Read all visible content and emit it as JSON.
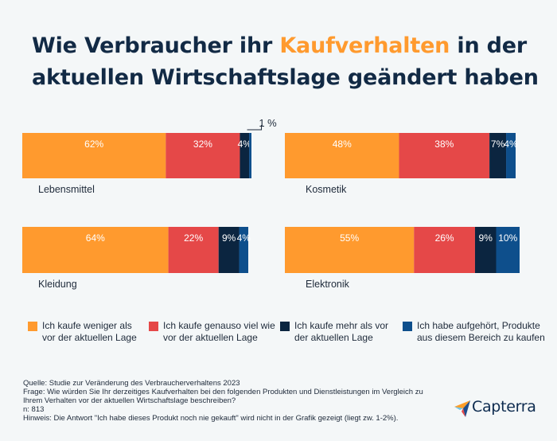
{
  "title": {
    "before": "Wie Verbraucher ihr ",
    "highlight": "Kaufverhalten",
    "after": " in der aktuellen Wirtschaftslage geändert haben"
  },
  "colors": {
    "highlight": "#ff9a2e",
    "series": [
      "#ff9a2e",
      "#e54848",
      "#0b2540",
      "#0e4f8c"
    ]
  },
  "chart_data": {
    "type": "bar",
    "orientation": "horizontal",
    "stacked": true,
    "series": [
      {
        "name": "Ich kaufe weniger als vor der aktuellen Lage",
        "color": "#ff9a2e"
      },
      {
        "name": "Ich kaufe genauso viel wie vor der aktuellen Lage",
        "color": "#e54848"
      },
      {
        "name": "Ich kaufe mehr als vor der aktuellen Lage",
        "color": "#0b2540"
      },
      {
        "name": "Ich habe aufgehört, Produkte aus diesem Bereich zu kaufen",
        "color": "#0e4f8c"
      }
    ],
    "panels": [
      {
        "category": "Lebensmittel",
        "values": [
          62,
          32,
          4,
          1
        ],
        "labels": [
          "62%",
          "32%",
          "4%",
          "1%"
        ],
        "callout": "1 %"
      },
      {
        "category": "Kosmetik",
        "values": [
          48,
          38,
          7,
          4
        ],
        "labels": [
          "48%",
          "38%",
          "7%",
          "4%"
        ]
      },
      {
        "category": "Kleidung",
        "values": [
          64,
          22,
          9,
          4
        ],
        "labels": [
          "64%",
          "22%",
          "9%",
          "4%"
        ]
      },
      {
        "category": "Elektronik",
        "values": [
          55,
          26,
          9,
          10
        ],
        "labels": [
          "55%",
          "26%",
          "9%",
          "10%"
        ]
      }
    ],
    "legend_position": "bottom"
  },
  "legend": [
    {
      "line1": "Ich kaufe weniger als",
      "line2": "vor der aktuellen Lage"
    },
    {
      "line1": "Ich kaufe genauso viel wie",
      "line2": "vor der aktuellen Lage"
    },
    {
      "line1": "Ich kaufe mehr als vor",
      "line2": "der aktuellen Lage"
    },
    {
      "line1": "Ich habe aufgehört, Produkte",
      "line2": "aus diesem Bereich zu kaufen"
    }
  ],
  "footnote": {
    "source": "Quelle: Studie zur Veränderung des Verbraucherverhaltens 2023",
    "question": "Frage: Wie würden Sie Ihr derzeitiges Kaufverhalten bei den folgenden Produkten und Dienstleistungen im Vergleich zu Ihrem Verhalten vor der aktuellen Wirtschaftslage beschreiben?",
    "n": "n: 813",
    "note": "Hinweis: Die Antwort \"Ich habe dieses Produkt noch nie gekauft\" wird nicht in der Grafik gezeigt (liegt zw. 1-2%)."
  },
  "logo": {
    "name": "Capterra",
    "icon": "capterra-arrow-icon"
  }
}
